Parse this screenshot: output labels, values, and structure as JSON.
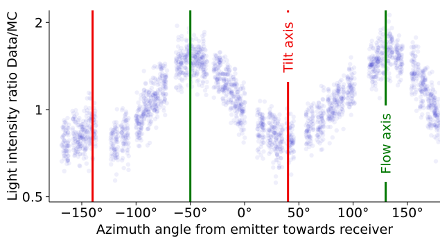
{
  "chart_data": {
    "type": "scatter",
    "title": "",
    "xlabel": "Azimuth angle from emitter towards receiver",
    "ylabel": "Light intensity ratio Data/MC",
    "xlim": [
      -180,
      180
    ],
    "ylim": [
      0.48,
      2.2
    ],
    "ylog": true,
    "grid": false,
    "x_ticks": [
      -150,
      -100,
      -50,
      0,
      50,
      100,
      150
    ],
    "x_tick_labels": [
      "−150°",
      "−100°",
      "−50°",
      "0°",
      "50°",
      "100°",
      "150°"
    ],
    "y_ticks": [
      0.5,
      1,
      2
    ],
    "y_tick_labels": [
      "0.5",
      "1",
      "2"
    ],
    "point_color": "#2222cc",
    "clusters": [
      {
        "x": -165,
        "median": 0.78
      },
      {
        "x": -155,
        "median": 0.8
      },
      {
        "x": -148,
        "median": 0.82
      },
      {
        "x": -140,
        "median": 0.87
      },
      {
        "x": -120,
        "median": 0.76
      },
      {
        "x": -110,
        "median": 0.8
      },
      {
        "x": -97,
        "median": 0.9
      },
      {
        "x": -90,
        "median": 1.0
      },
      {
        "x": -83,
        "median": 1.1
      },
      {
        "x": -75,
        "median": 1.22
      },
      {
        "x": -60,
        "median": 1.42
      },
      {
        "x": -52,
        "median": 1.48
      },
      {
        "x": -45,
        "median": 1.5
      },
      {
        "x": -38,
        "median": 1.46
      },
      {
        "x": -25,
        "median": 1.32
      },
      {
        "x": -17,
        "median": 1.22
      },
      {
        "x": -10,
        "median": 1.1
      },
      {
        "x": -3,
        "median": 1.0
      },
      {
        "x": 15,
        "median": 0.86
      },
      {
        "x": 25,
        "median": 0.82
      },
      {
        "x": 32,
        "median": 0.78
      },
      {
        "x": 42,
        "median": 0.8
      },
      {
        "x": 60,
        "median": 0.86
      },
      {
        "x": 70,
        "median": 0.92
      },
      {
        "x": 80,
        "median": 0.98
      },
      {
        "x": 88,
        "median": 1.08
      },
      {
        "x": 98,
        "median": 1.18
      },
      {
        "x": 118,
        "median": 1.4
      },
      {
        "x": 125,
        "median": 1.48
      },
      {
        "x": 133,
        "median": 1.55
      },
      {
        "x": 142,
        "median": 1.5
      },
      {
        "x": 157,
        "median": 1.38
      },
      {
        "x": 165,
        "median": 1.22
      },
      {
        "x": 172,
        "median": 1.05
      },
      {
        "x": 178,
        "median": 0.93
      }
    ],
    "vertical_lines": [
      {
        "x": -140,
        "color": "#ee0000",
        "style": "solid"
      },
      {
        "x": 40,
        "color": "#ee0000",
        "style": "dashed",
        "label": "Tilt axis"
      },
      {
        "x": -50,
        "color": "#007700",
        "style": "solid"
      },
      {
        "x": 130,
        "color": "#007700",
        "style": "dashed",
        "label": "Flow axis"
      }
    ]
  }
}
